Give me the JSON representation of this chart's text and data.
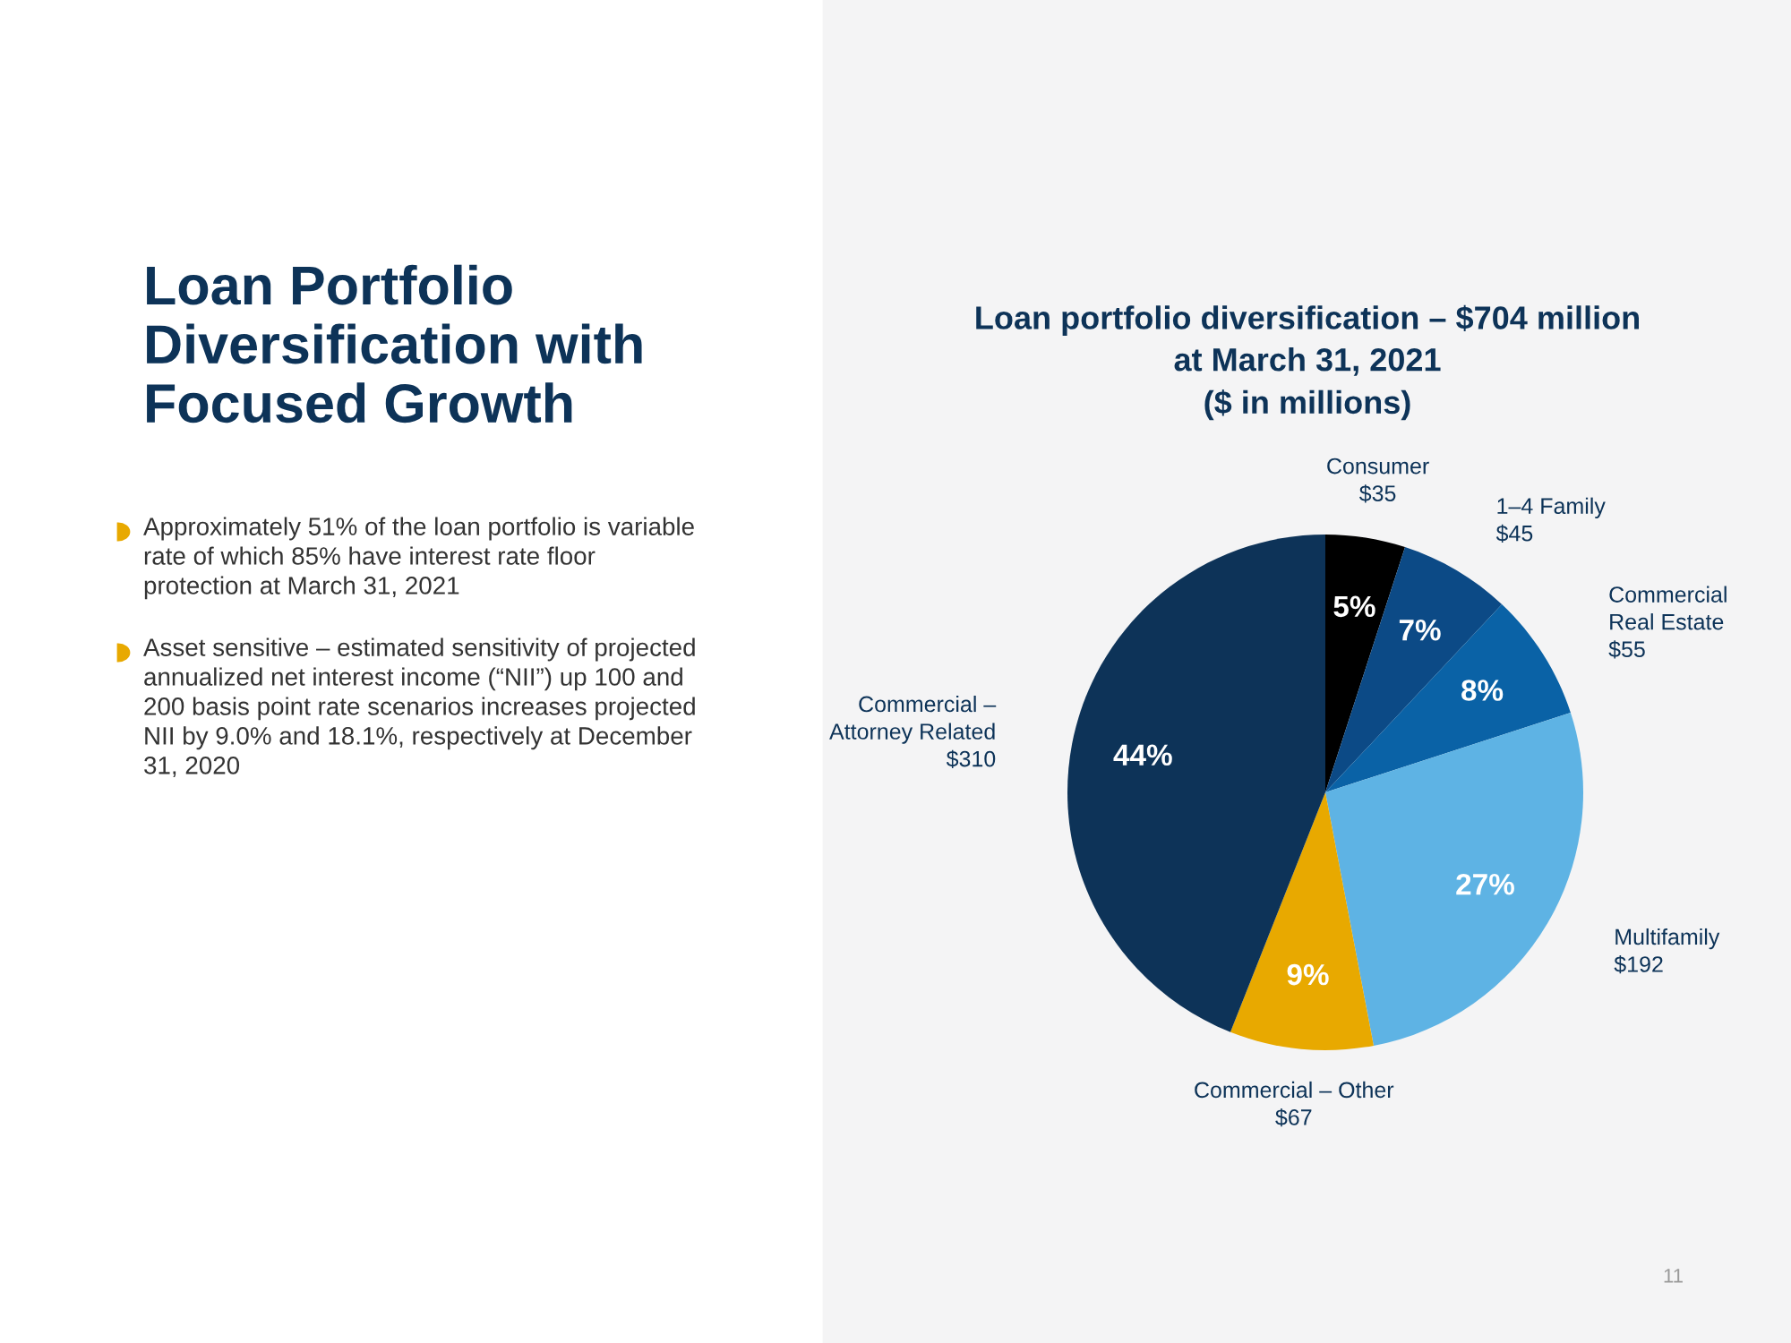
{
  "chart_data": {
    "type": "pie",
    "title": "Loan portfolio diversification – $704 million\nat March 31, 2021\n($ in millions)",
    "categories": [
      "Consumer\n$35",
      "1–4 Family\n$45",
      "Commercial\nReal Estate\n$55",
      "Multifamily\n$192",
      "Commercial – Other\n$67",
      "Commercial –\nAttorney Related\n$310"
    ],
    "values": [
      5,
      7,
      8,
      27,
      9,
      44
    ],
    "colors": [
      "#000000",
      "#0c4a86",
      "#0a62a6",
      "#5eb3e4",
      "#e8a900",
      "#0d3358"
    ],
    "value_labels": [
      "5%",
      "7%",
      "8%",
      "27%",
      "9%",
      "44%"
    ],
    "annotations": [
      "Loan Portfolio\nDiversification with\nFocused Growth",
      "Approximately 51% of the loan portfolio is variable\nrate of which 85% have interest rate floor\nprotection at March 31, 2021",
      "Asset sensitive – estimated sensitivity of projected\nannualized net interest income (“NII”) up 100 and\n200 basis point rate scenarios increases projected\nNII by 9.0% and 18.1%, respectively at December\n31, 2020",
      "11"
    ]
  }
}
